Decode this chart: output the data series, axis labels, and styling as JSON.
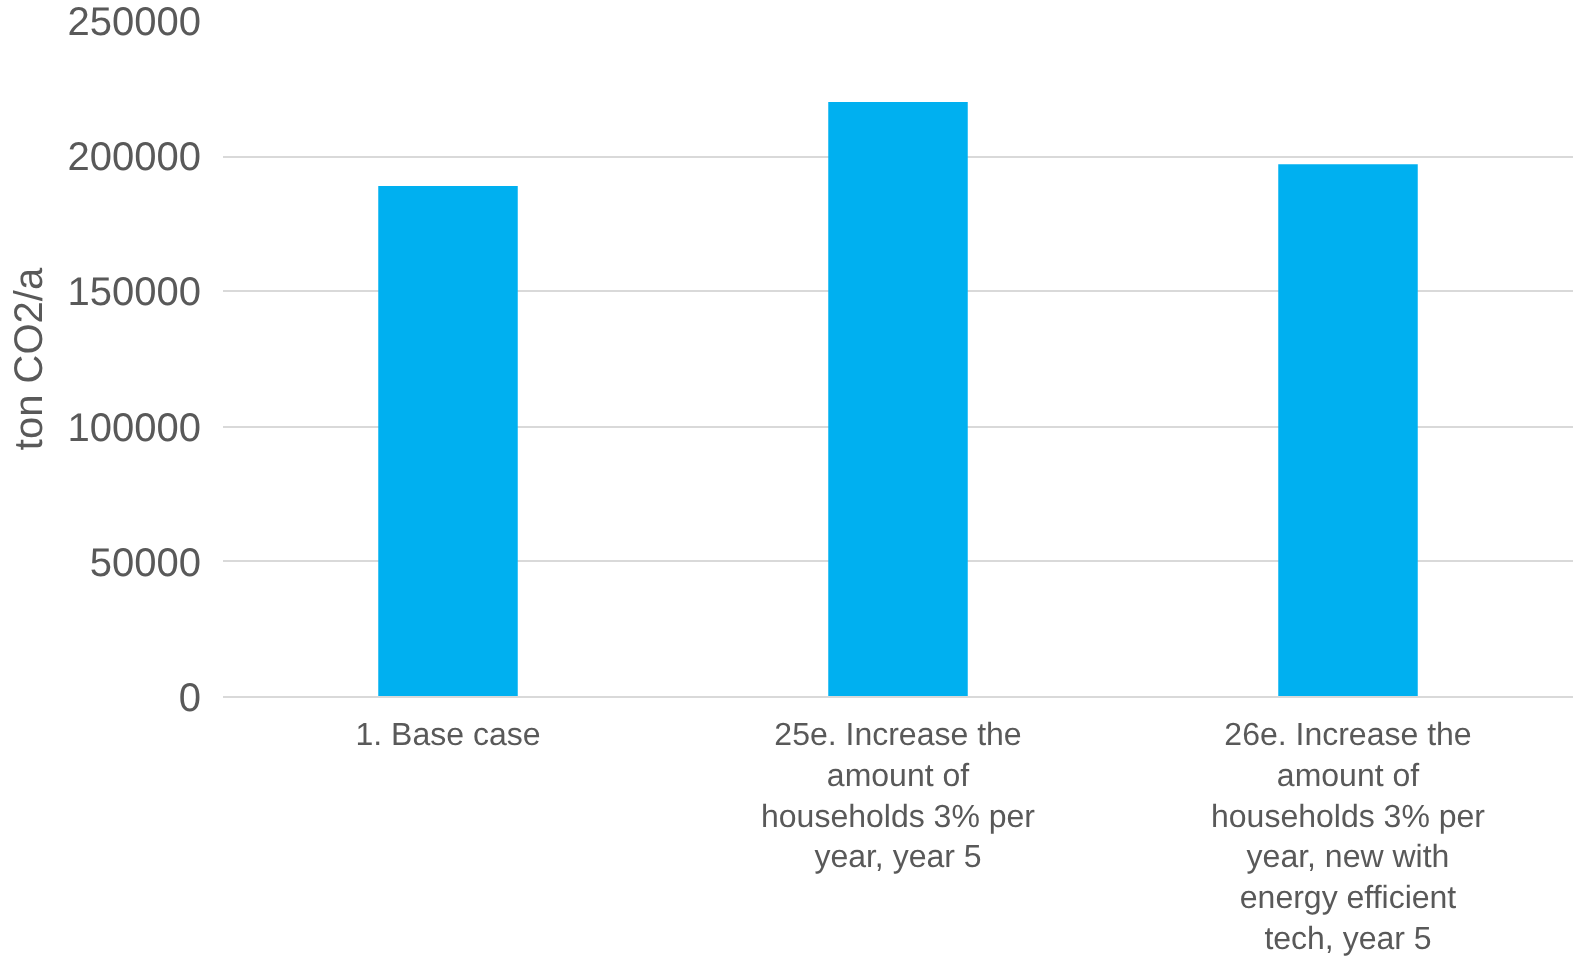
{
  "chart_data": {
    "type": "bar",
    "ylabel": "ton CO2/a",
    "categories": [
      "1. Base case",
      "25e. Increase the amount of households 3% per year, year 5",
      "26e. Increase the amount of households 3% per year, new with energy efficient tech, year 5"
    ],
    "values": [
      189000,
      220000,
      197000
    ],
    "color": "#00b0f0",
    "ylim": [
      0,
      250000
    ],
    "yticks": [
      0,
      50000,
      100000,
      150000,
      200000,
      250000
    ],
    "grid": "y"
  }
}
